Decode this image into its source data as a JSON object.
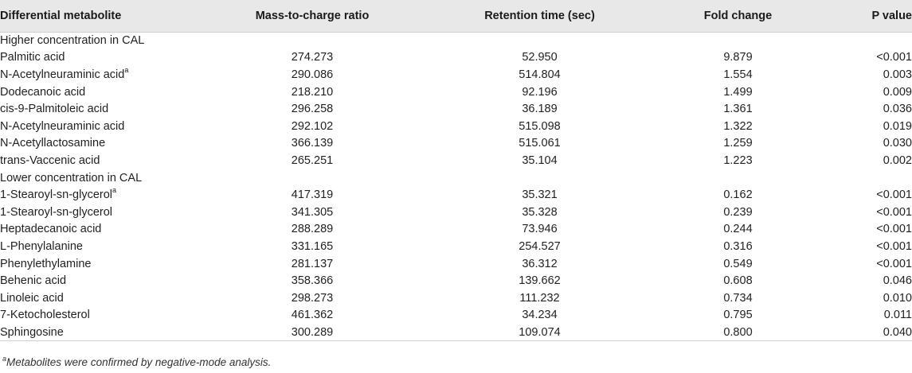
{
  "table": {
    "headers": [
      "Differential metabolite",
      "Mass-to-charge ratio",
      "Retention time (sec)",
      "Fold change",
      "P value"
    ],
    "groups": [
      {
        "label": "Higher concentration in CAL",
        "rows": [
          {
            "name": "Palmitic acid",
            "note": "",
            "mz": "274.273",
            "rt": "52.950",
            "fc": "9.879",
            "p": "<0.001"
          },
          {
            "name": "N-Acetylneuraminic acid",
            "note": "a",
            "mz": "290.086",
            "rt": "514.804",
            "fc": "1.554",
            "p": "0.003"
          },
          {
            "name": "Dodecanoic acid",
            "note": "",
            "mz": "218.210",
            "rt": "92.196",
            "fc": "1.499",
            "p": "0.009"
          },
          {
            "name": "cis-9-Palmitoleic acid",
            "note": "",
            "mz": "296.258",
            "rt": "36.189",
            "fc": "1.361",
            "p": "0.036"
          },
          {
            "name": "N-Acetylneuraminic acid",
            "note": "",
            "mz": "292.102",
            "rt": "515.098",
            "fc": "1.322",
            "p": "0.019"
          },
          {
            "name": "N-Acetyllactosamine",
            "note": "",
            "mz": "366.139",
            "rt": "515.061",
            "fc": "1.259",
            "p": "0.030"
          },
          {
            "name": "trans-Vaccenic acid",
            "note": "",
            "mz": "265.251",
            "rt": "35.104",
            "fc": "1.223",
            "p": "0.002"
          }
        ]
      },
      {
        "label": "Lower concentration in CAL",
        "rows": [
          {
            "name": "1-Stearoyl-sn-glycerol",
            "note": "a",
            "mz": "417.319",
            "rt": "35.321",
            "fc": "0.162",
            "p": "<0.001"
          },
          {
            "name": "1-Stearoyl-sn-glycerol",
            "note": "",
            "mz": "341.305",
            "rt": "35.328",
            "fc": "0.239",
            "p": "<0.001"
          },
          {
            "name": "Heptadecanoic acid",
            "note": "",
            "mz": "288.289",
            "rt": "73.946",
            "fc": "0.244",
            "p": "<0.001"
          },
          {
            "name": "L-Phenylalanine",
            "note": "",
            "mz": "331.165",
            "rt": "254.527",
            "fc": "0.316",
            "p": "<0.001"
          },
          {
            "name": "Phenylethylamine",
            "note": "",
            "mz": "281.137",
            "rt": "36.312",
            "fc": "0.549",
            "p": "<0.001"
          },
          {
            "name": "Behenic acid",
            "note": "",
            "mz": "358.366",
            "rt": "139.662",
            "fc": "0.608",
            "p": "0.046"
          },
          {
            "name": "Linoleic acid",
            "note": "",
            "mz": "298.273",
            "rt": "111.232",
            "fc": "0.734",
            "p": "0.010"
          },
          {
            "name": "7-Ketocholesterol",
            "note": "",
            "mz": "461.362",
            "rt": "34.234",
            "fc": "0.795",
            "p": "0.011"
          },
          {
            "name": "Sphingosine",
            "note": "",
            "mz": "300.289",
            "rt": "109.074",
            "fc": "0.800",
            "p": "0.040"
          }
        ]
      }
    ]
  },
  "footnote": {
    "mark": "a",
    "text": "Metabolites were confirmed by negative-mode analysis."
  }
}
